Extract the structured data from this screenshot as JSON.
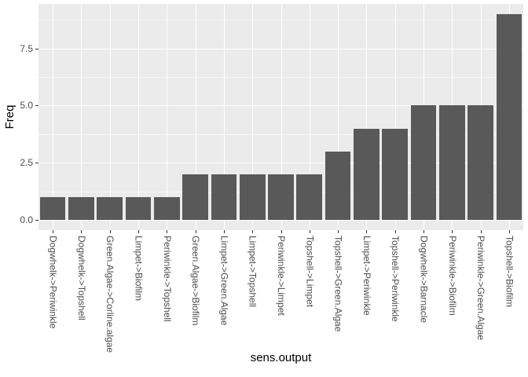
{
  "chart_data": {
    "type": "bar",
    "title": "",
    "xlabel": "sens.output",
    "ylabel": "Freq",
    "categories": [
      "Dogwhelk->Periwinkle",
      "Dogwhelk->Topshell",
      "Green.Algae->Corline.algae",
      "Limpet->Biofilm",
      "Periwinkle->Topshell",
      "Green.Algae->Biofilm",
      "Limpet->Green.Algae",
      "Limpet->Topshell",
      "Periwinkle->Limpet",
      "Topshell->Limpet",
      "Topshell->Green.Algae",
      "Limpet->Periwinkle",
      "Topshell->Periwinkle",
      "Dogwhelk->Barnacle",
      "Periwinkle->Biofilm",
      "Periwinkle->Green.Algae",
      "Topshell->Biofilm"
    ],
    "values": [
      1,
      1,
      1,
      1,
      1,
      2,
      2,
      2,
      2,
      2,
      3,
      4,
      4,
      5,
      5,
      5,
      9
    ],
    "yticks": [
      0.0,
      2.5,
      5.0,
      7.5
    ],
    "ytick_labels": [
      "0.0",
      "2.5",
      "5.0",
      "7.5"
    ],
    "yminor": [
      1.25,
      3.75,
      6.25,
      8.75
    ],
    "ylim": [
      -0.45,
      9.45
    ],
    "grid": true,
    "legend": "none",
    "colors": {
      "bar": "#595959",
      "panel_bg": "#EBEBEB",
      "grid_major": "#FFFFFF",
      "grid_minor": "rgba(255,255,255,0.62)",
      "tick_text": "#4D4D4D",
      "axis_title": "#000000",
      "tick_mark": "#333333",
      "background": "#FFFFFF"
    }
  }
}
